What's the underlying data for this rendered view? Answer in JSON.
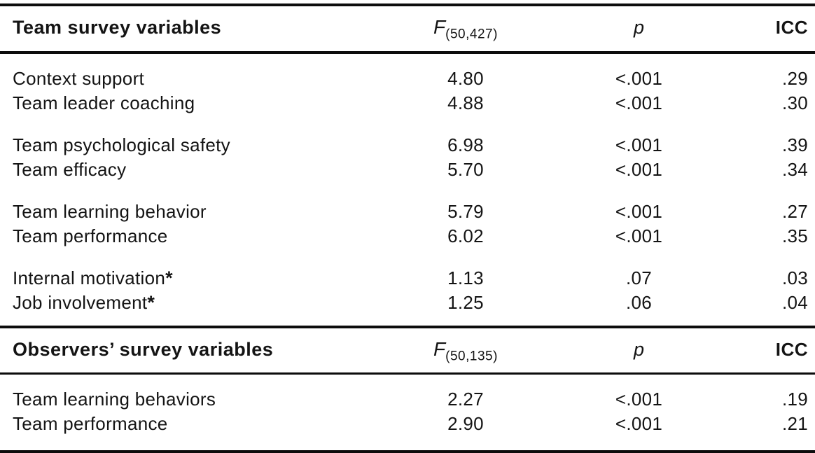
{
  "table": {
    "sections": [
      {
        "header": {
          "variables_label": "Team survey variables",
          "f_symbol": "F",
          "f_subscript": "(50,427)",
          "p_label": "p",
          "icc_label": "ICC"
        },
        "groups": [
          {
            "rows": [
              {
                "name": "Context support",
                "suffix": "",
                "f": "4.80",
                "p": "<.001",
                "icc": ".29"
              },
              {
                "name": "Team leader coaching",
                "suffix": "",
                "f": "4.88",
                "p": "<.001",
                "icc": ".30"
              }
            ]
          },
          {
            "rows": [
              {
                "name": "Team psychological safety",
                "suffix": "",
                "f": "6.98",
                "p": "<.001",
                "icc": ".39"
              },
              {
                "name": "Team efficacy",
                "suffix": "",
                "f": "5.70",
                "p": "<.001",
                "icc": ".34"
              }
            ]
          },
          {
            "rows": [
              {
                "name": "Team learning behavior",
                "suffix": "",
                "f": "5.79",
                "p": "<.001",
                "icc": ".27"
              },
              {
                "name": "Team performance",
                "suffix": "",
                "f": "6.02",
                "p": "<.001",
                "icc": ".35"
              }
            ]
          },
          {
            "rows": [
              {
                "name": "Internal motivation",
                "suffix": "*",
                "f": "1.13",
                "p": ".07",
                "icc": ".03"
              },
              {
                "name": "Job involvement",
                "suffix": "*",
                "f": "1.25",
                "p": ".06",
                "icc": ".04"
              }
            ]
          }
        ]
      },
      {
        "header": {
          "variables_label": "Observers’ survey variables",
          "f_symbol": "F",
          "f_subscript": "(50,135)",
          "p_label": "p",
          "icc_label": "ICC"
        },
        "groups": [
          {
            "rows": [
              {
                "name": "Team learning behaviors",
                "suffix": "",
                "f": "2.27",
                "p": "<.001",
                "icc": ".19"
              },
              {
                "name": "Team performance",
                "suffix": "",
                "f": "2.90",
                "p": "<.001",
                "icc": ".21"
              }
            ]
          }
        ]
      }
    ]
  }
}
